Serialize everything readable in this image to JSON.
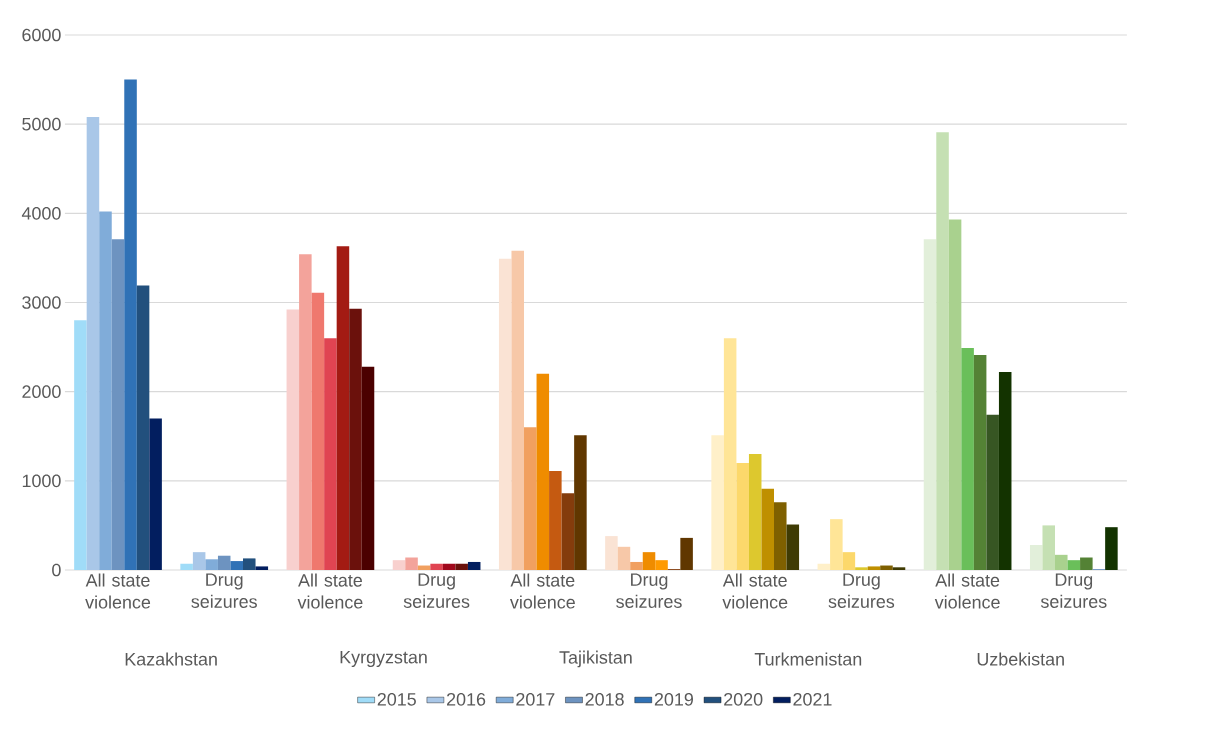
{
  "chart_data": {
    "type": "bar",
    "categories": [
      "All state violence",
      "Drug seizures",
      "All state violence",
      "Drug seizures",
      "All state violence",
      "Drug seizures",
      "All state violence",
      "Drug seizures",
      "All state violence",
      "Drug seizures"
    ],
    "annotations": [
      "Kazakhstan",
      "Kyrgyzstan",
      "Tajikistan",
      "Turkmenistan",
      "Uzbekistan"
    ],
    "series": [
      {
        "name": "2015",
        "color": "#a0dcf8",
        "colors": [
          "#a0dcf8",
          "#a0dcf8",
          "#f8d0ce",
          "#f8d0ce",
          "#fae3d4",
          "#fae3d4",
          "#fff0c9",
          "#fff0c9",
          "#e2efda",
          "#e2efda"
        ],
        "values": [
          2800,
          70,
          2920,
          110,
          3490,
          380,
          1510,
          70,
          3710,
          280
        ]
      },
      {
        "name": "2016",
        "color": "#a9c7e8",
        "colors": [
          "#a9c7e8",
          "#a9c7e8",
          "#f3a39b",
          "#f3a39b",
          "#f7c8a8",
          "#f7c8a8",
          "#ffe597",
          "#ffe597",
          "#c5e0b3",
          "#c5e0b3"
        ],
        "values": [
          5080,
          200,
          3540,
          140,
          3580,
          260,
          2600,
          570,
          4910,
          500
        ]
      },
      {
        "name": "2017",
        "color": "#80acd9",
        "colors": [
          "#80acd9",
          "#80acd9",
          "#ef786e",
          "#f1a060",
          "#f1a060",
          "#f1a060",
          "#fcd86b",
          "#fcd86b",
          "#a9d18e",
          "#a9d18e"
        ],
        "values": [
          4020,
          120,
          3110,
          50,
          1600,
          90,
          1200,
          200,
          3930,
          170
        ]
      },
      {
        "name": "2018",
        "color": "#6d93c0",
        "colors": [
          "#6d93c0",
          "#6d93c0",
          "#e04452",
          "#e04452",
          "#ef8c00",
          "#ef8c00",
          "#ddc82e",
          "#ddc82e",
          "#6abf5a",
          "#6abf5a"
        ],
        "values": [
          3710,
          160,
          2600,
          70,
          2200,
          200,
          1300,
          30,
          2490,
          110
        ]
      },
      {
        "name": "2019",
        "color": "#3072b6",
        "colors": [
          "#3072b6",
          "#3072b6",
          "#a31b13",
          "#a0081c",
          "#c55a11",
          "#ff9a00",
          "#bf8f00",
          "#bf8f00",
          "#548235",
          "#548235"
        ],
        "values": [
          5500,
          100,
          3630,
          70,
          1110,
          110,
          910,
          40,
          2410,
          140
        ]
      },
      {
        "name": "2020",
        "color": "#22507d",
        "colors": [
          "#22507d",
          "#22507d",
          "#6b110c",
          "#6b110c",
          "#843c0c",
          "#843c0c",
          "#7f6000",
          "#7f6000",
          "#375623",
          "#6d93c0"
        ],
        "values": [
          3190,
          130,
          2930,
          70,
          860,
          10,
          760,
          50,
          1740,
          10
        ]
      },
      {
        "name": "2021",
        "color": "#021e5f",
        "colors": [
          "#021e5f",
          "#021e5f",
          "#4b0000",
          "#021e5f",
          "#603700",
          "#603700",
          "#3f3b04",
          "#3f3b04",
          "#133300",
          "#133300"
        ],
        "values": [
          1700,
          40,
          2280,
          90,
          1510,
          360,
          510,
          30,
          2220,
          480
        ]
      }
    ],
    "ylim": [
      0,
      6000
    ],
    "yticks": [
      0,
      1000,
      2000,
      3000,
      4000,
      5000,
      6000
    ],
    "grid": "y",
    "legend": "bottom"
  }
}
